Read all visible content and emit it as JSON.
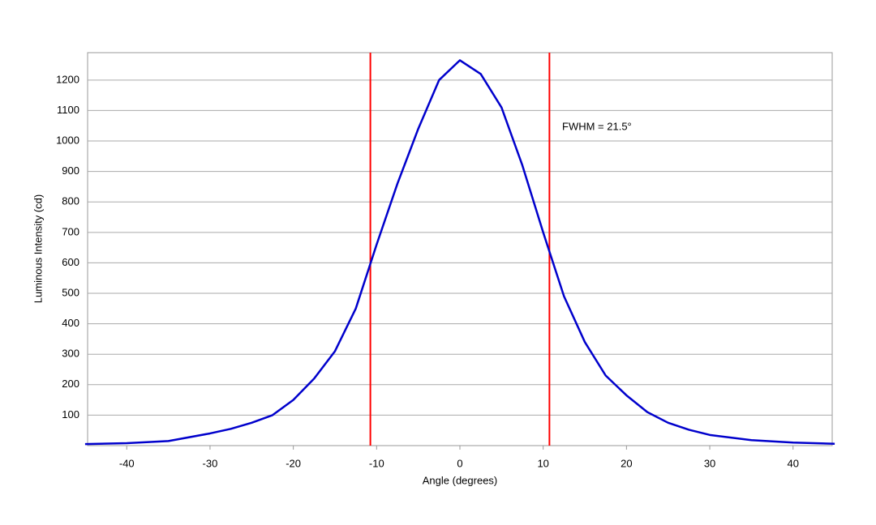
{
  "chart_data": {
    "type": "line",
    "x_label": "Angle (degrees)",
    "y_label": "Luminous Intensity (cd)",
    "annotation": "FWHM = 21.5°",
    "x": [
      -45,
      -40,
      -35,
      -30,
      -27.5,
      -25,
      -22.5,
      -20,
      -17.5,
      -15,
      -12.5,
      -10,
      -7.5,
      -5,
      -2.5,
      0,
      2.5,
      5,
      7.5,
      10,
      12.5,
      15,
      17.5,
      20,
      22.5,
      25,
      27.5,
      30,
      35,
      40,
      45
    ],
    "series": [
      {
        "color": "#0000cc",
        "values": [
          5,
          8,
          15,
          40,
          55,
          75,
          100,
          150,
          220,
          310,
          450,
          660,
          860,
          1040,
          1200,
          1265,
          1220,
          1110,
          920,
          700,
          490,
          340,
          230,
          165,
          110,
          75,
          52,
          35,
          18,
          10,
          6
        ]
      }
    ],
    "vlines": [
      -10.75,
      10.75
    ],
    "vline_color": "#ff0000",
    "xlim": [
      -44.7,
      44.7
    ],
    "xticks": [
      -40,
      -30,
      -20,
      -10,
      0,
      10,
      20,
      30,
      40
    ],
    "ylim": [
      0,
      1290
    ],
    "yticks": [
      100,
      200,
      300,
      400,
      500,
      600,
      700,
      800,
      900,
      1000,
      1100,
      1200
    ],
    "grid": true
  }
}
